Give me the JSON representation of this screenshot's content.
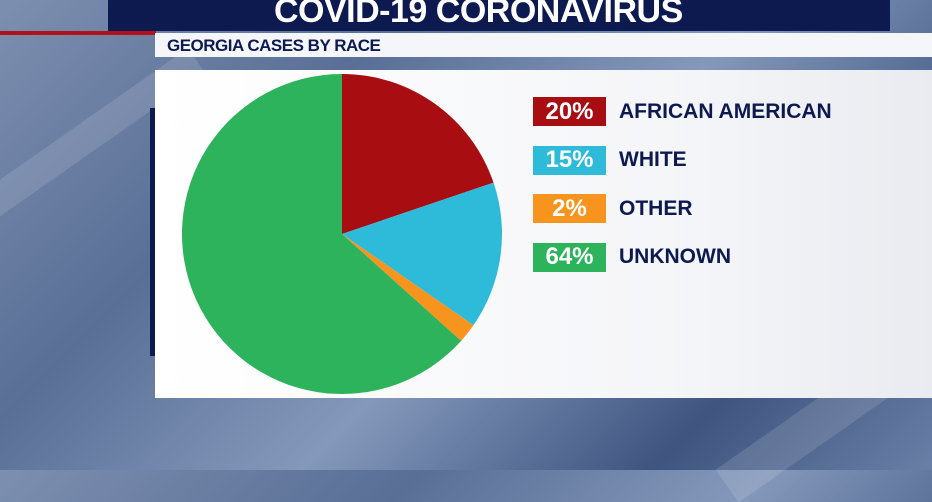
{
  "header": {
    "title": "COVID-19 CORONAVIRUS",
    "subtitle": "GEORGIA CASES BY RACE"
  },
  "chart_data": {
    "type": "pie",
    "title": "GEORGIA CASES BY RACE",
    "slices": [
      {
        "label": "AFRICAN AMERICAN",
        "value": 20,
        "display": "20%",
        "color": "#a80d12"
      },
      {
        "label": "WHITE",
        "value": 15,
        "display": "15%",
        "color": "#2ebbd9"
      },
      {
        "label": "OTHER",
        "value": 2,
        "display": "2%",
        "color": "#f7941d"
      },
      {
        "label": "UNKNOWN",
        "value": 64,
        "display": "64%",
        "color": "#2cb35c"
      }
    ],
    "legend": "right"
  }
}
